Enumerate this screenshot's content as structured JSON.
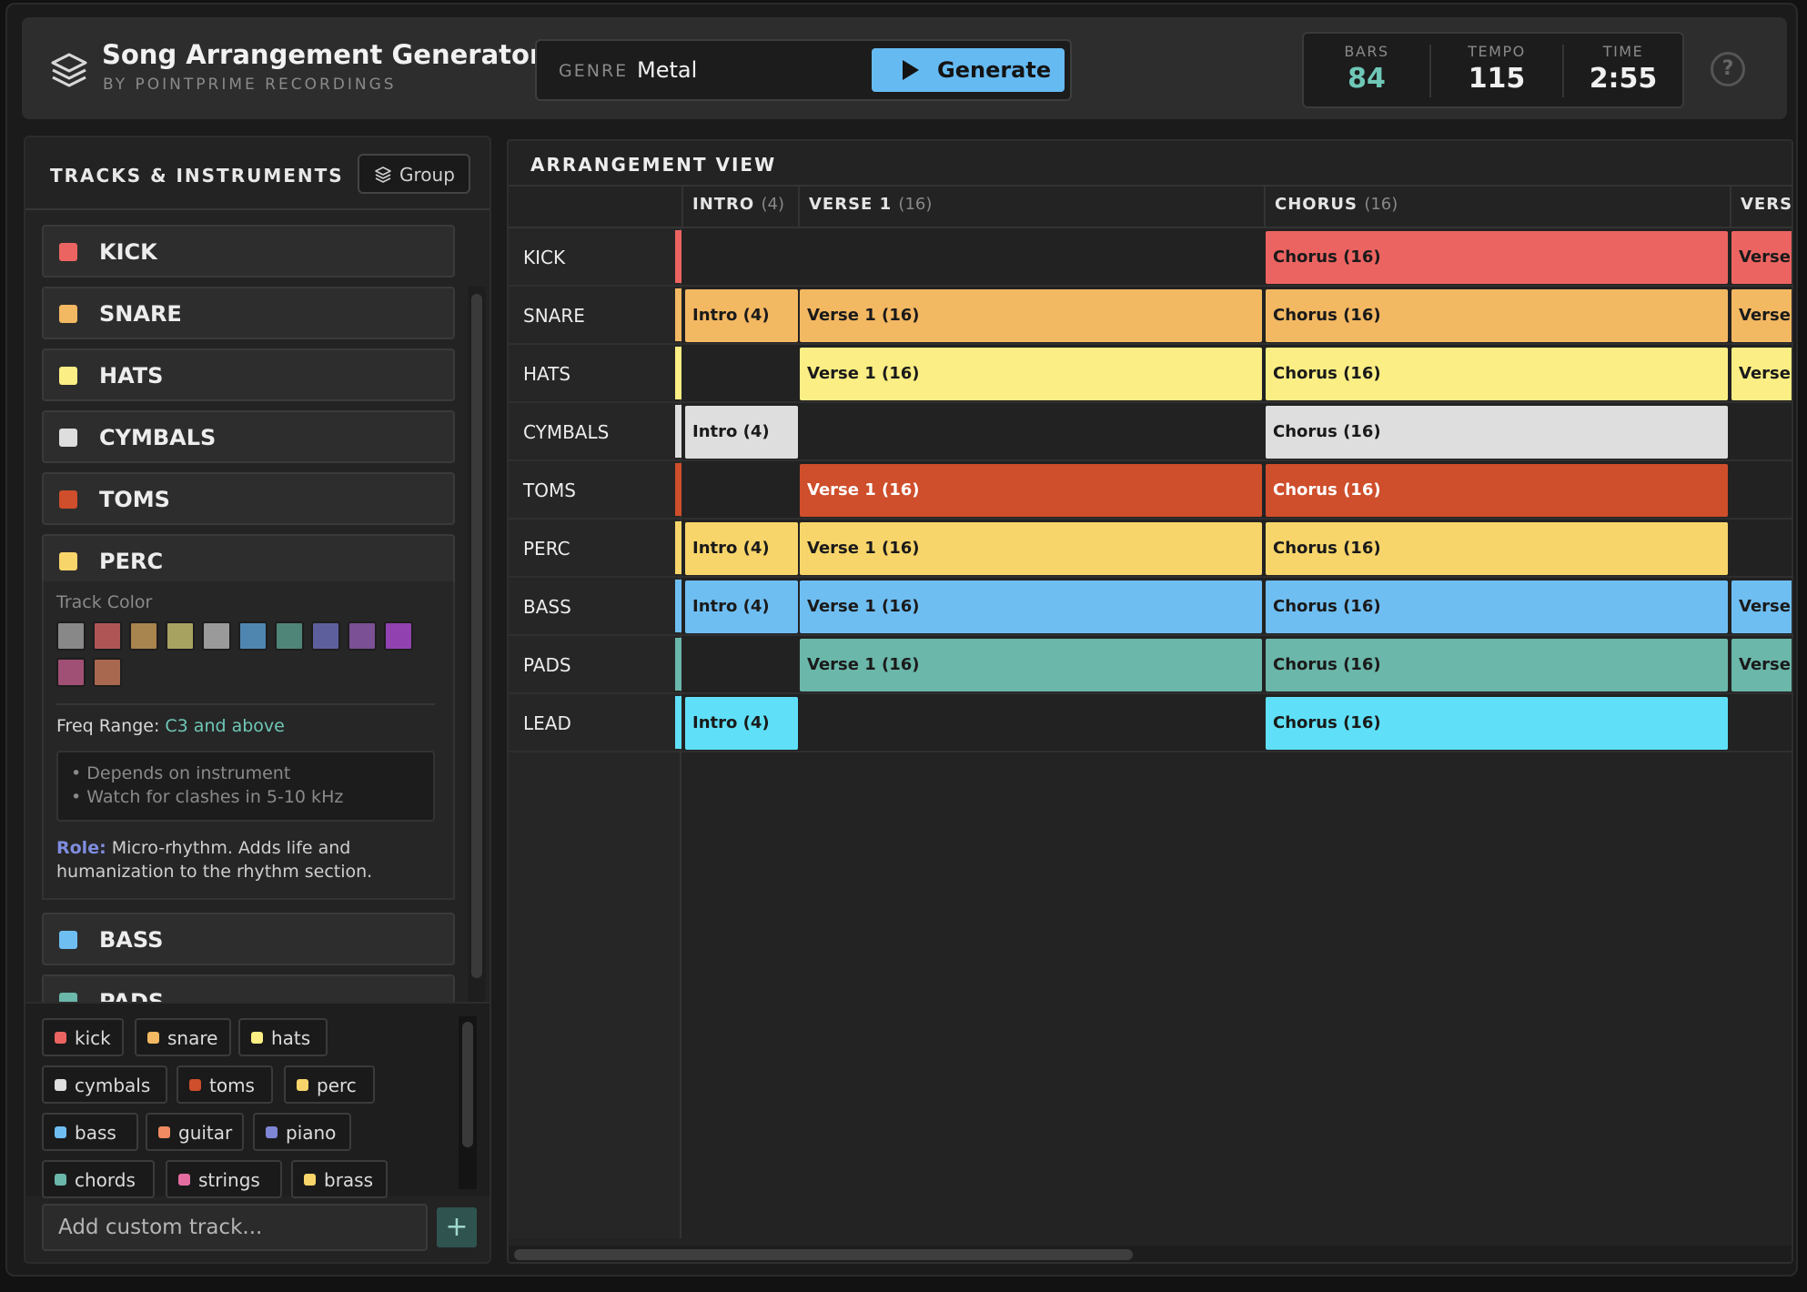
{
  "app": {
    "title": "Song Arrangement Generator",
    "subtitle": "BY POINTPRIME RECORDINGS"
  },
  "genre": {
    "label": "GENRE",
    "value": "Metal",
    "generate_label": "Generate"
  },
  "stats": [
    {
      "label": "BARS",
      "value": "84",
      "accent": "#6fc7b7"
    },
    {
      "label": "TEMPO",
      "value": "115"
    },
    {
      "label": "TIME",
      "value": "2:55"
    }
  ],
  "help_label": "?",
  "tracks_panel": {
    "title": "TRACKS & INSTRUMENTS",
    "group_label": "Group",
    "tracks": [
      {
        "name": "KICK",
        "color": "#ec6461"
      },
      {
        "name": "SNARE",
        "color": "#f3b862"
      },
      {
        "name": "HATS",
        "color": "#fbee84"
      },
      {
        "name": "CYMBALS",
        "color": "#dedede"
      },
      {
        "name": "TOMS",
        "color": "#cf4e2b"
      },
      {
        "name": "PERC",
        "color": "#f8d56a",
        "expanded": true
      },
      {
        "name": "BASS",
        "color": "#6fbef2"
      },
      {
        "name": "PADS",
        "color": "#6bb7aa"
      }
    ],
    "expanded": {
      "track_color_label": "Track Color",
      "palette": [
        "#888888",
        "#b05555",
        "#a8844f",
        "#a8a260",
        "#9a9a9a",
        "#4f86b0",
        "#4f8579",
        "#5d5f9c",
        "#7b5094",
        "#9142b0",
        "#a05074",
        "#a8674f"
      ],
      "freq_label": "Freq Range:",
      "freq_value": "C3 and above",
      "notes": [
        "• Depends on instrument",
        "• Watch for clashes in 5-10 kHz"
      ],
      "role_label": "Role:",
      "role_text": "Micro-rhythm. Adds life and humanization to the rhythm section."
    },
    "tags": [
      {
        "label": "kick",
        "color": "#ec6461"
      },
      {
        "label": "snare",
        "color": "#f3b862"
      },
      {
        "label": "hats",
        "color": "#fbee84"
      },
      {
        "label": "cymbals",
        "color": "#dedede"
      },
      {
        "label": "toms",
        "color": "#cf4e2b"
      },
      {
        "label": "perc",
        "color": "#f8d56a"
      },
      {
        "label": "bass",
        "color": "#6fbef2"
      },
      {
        "label": "guitar",
        "color": "#ef8a62"
      },
      {
        "label": "piano",
        "color": "#7f86d6"
      },
      {
        "label": "chords",
        "color": "#6bb7aa"
      },
      {
        "label": "strings",
        "color": "#e46da0"
      },
      {
        "label": "brass",
        "color": "#f8d56a"
      }
    ],
    "add_placeholder": "Add custom track...",
    "add_button": "+"
  },
  "arrangement": {
    "title": "ARRANGEMENT VIEW",
    "sections": [
      {
        "name": "INTRO",
        "count": "(4)"
      },
      {
        "name": "VERSE 1",
        "count": "(16)"
      },
      {
        "name": "CHORUS",
        "count": "(16)"
      },
      {
        "name": "VERSE",
        "count": ""
      }
    ],
    "lanes": [
      {
        "name": "KICK",
        "color": "#ec6461",
        "text": "#1a1a1a",
        "clips": [
          null,
          null,
          "Chorus (16)",
          "Verse"
        ]
      },
      {
        "name": "SNARE",
        "color": "#f3b862",
        "text": "#1a1a1a",
        "clips": [
          "Intro (4)",
          "Verse 1 (16)",
          "Chorus (16)",
          "Verse"
        ]
      },
      {
        "name": "HATS",
        "color": "#fbee84",
        "text": "#1a1a1a",
        "clips": [
          null,
          "Verse 1 (16)",
          "Chorus (16)",
          "Verse"
        ]
      },
      {
        "name": "CYMBALS",
        "color": "#dedede",
        "text": "#1a1a1a",
        "clips": [
          "Intro (4)",
          null,
          "Chorus (16)",
          null
        ]
      },
      {
        "name": "TOMS",
        "color": "#cf4e2b",
        "text": "#ffffff",
        "clips": [
          null,
          "Verse 1 (16)",
          "Chorus (16)",
          null
        ]
      },
      {
        "name": "PERC",
        "color": "#f8d56a",
        "text": "#1a1a1a",
        "clips": [
          "Intro (4)",
          "Verse 1 (16)",
          "Chorus (16)",
          null
        ]
      },
      {
        "name": "BASS",
        "color": "#6fbef2",
        "text": "#1a1a1a",
        "clips": [
          "Intro (4)",
          "Verse 1 (16)",
          "Chorus (16)",
          "Verse"
        ]
      },
      {
        "name": "PADS",
        "color": "#6bb7aa",
        "text": "#1a1a1a",
        "clips": [
          null,
          "Verse 1 (16)",
          "Chorus (16)",
          "Verse"
        ]
      },
      {
        "name": "LEAD",
        "color": "#5fe0f8",
        "text": "#1a1a1a",
        "clips": [
          "Intro (4)",
          null,
          "Chorus (16)",
          null
        ]
      }
    ]
  }
}
